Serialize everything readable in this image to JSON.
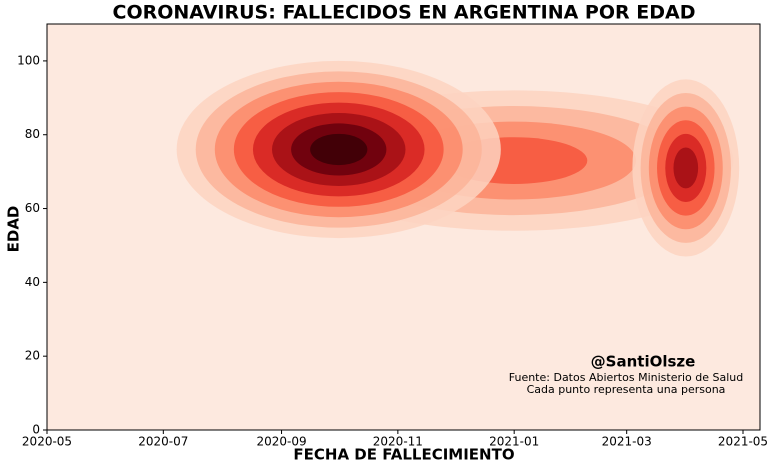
{
  "chart_data": {
    "type": "density",
    "title": "CORONAVIRUS: FALLECIDOS EN ARGENTINA POR EDAD",
    "x_label": "FECHA DE FALLECIMIENTO",
    "y_label": "EDAD",
    "xlim": [
      "2020-05",
      "2021-05"
    ],
    "xticks": [
      "2020-05",
      "2020-07",
      "2020-09",
      "2020-11",
      "2021-01",
      "2021-03",
      "2021-05"
    ],
    "ylim": [
      0,
      110
    ],
    "yticks": [
      0,
      20,
      40,
      60,
      80,
      100
    ],
    "background": "#fde9df",
    "colors": [
      "#fdd3c1",
      "#fcb499",
      "#fc8a6a",
      "#f6553c",
      "#d52221",
      "#a10e15",
      "#67000d",
      "#3a0006"
    ],
    "density": [
      {
        "x": "2021-01",
        "y": 73,
        "x_spread": 115,
        "y_spread": 19,
        "levels": 4
      },
      {
        "x": "2020-10",
        "y": 76,
        "x_spread": 85,
        "y_spread": 24,
        "levels": 8
      },
      {
        "x": "2021-04",
        "y": 71,
        "x_spread": 28,
        "y_spread": 24,
        "levels": 6
      }
    ],
    "annotations": [
      "@SantiOlsze",
      "Fuente: Datos Abiertos Ministerio de Salud",
      "Cada punto representa una persona"
    ]
  }
}
